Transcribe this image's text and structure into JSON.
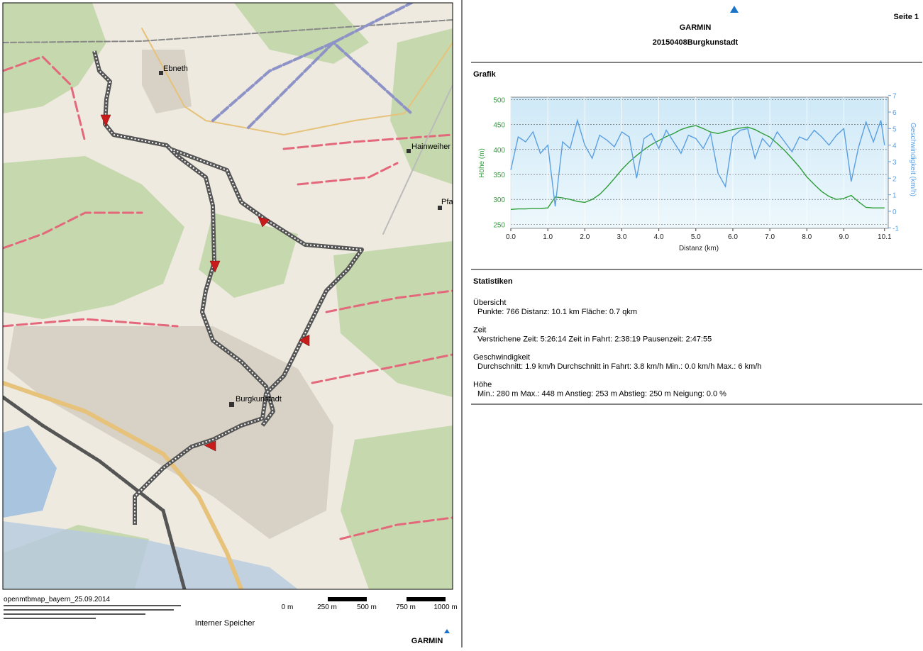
{
  "header": {
    "brand": "GARMIN",
    "title": "20150408Burgkunstadt",
    "page": "Seite 1"
  },
  "map": {
    "labels": [
      "Ebneth",
      "Hainweiher",
      "Pfa",
      "Burgkunstadt"
    ],
    "source": "openmtbmap_bayern_25.09.2014",
    "scale_labels": [
      "0 m",
      "250 m",
      "500 m",
      "750 m",
      "1000 m"
    ],
    "storage": "Interner Speicher",
    "brand": "GARMIN"
  },
  "sections": {
    "graph": "Grafik",
    "stats": "Statistiken"
  },
  "chart_data": {
    "type": "line",
    "ylabel": "Höhe (m)",
    "y2label": "Geschwindigkeit (km/h)",
    "xlabel": "Distanz (km)",
    "x": [
      0,
      0.2,
      0.4,
      0.6,
      0.8,
      1.0,
      1.2,
      1.4,
      1.6,
      1.8,
      2.0,
      2.2,
      2.4,
      2.6,
      2.8,
      3.0,
      3.2,
      3.4,
      3.6,
      3.8,
      4.0,
      4.2,
      4.4,
      4.6,
      4.8,
      5.0,
      5.2,
      5.4,
      5.6,
      5.8,
      6.0,
      6.2,
      6.4,
      6.6,
      6.8,
      7.0,
      7.2,
      7.4,
      7.6,
      7.8,
      8.0,
      8.2,
      8.4,
      8.6,
      8.8,
      9.0,
      9.2,
      9.4,
      9.6,
      9.8,
      10.0,
      10.1
    ],
    "series": [
      {
        "color": "#2f9e3a",
        "values": [
          280,
          281,
          281,
          282,
          282,
          283,
          305,
          303,
          300,
          296,
          294,
          300,
          310,
          325,
          342,
          360,
          375,
          388,
          400,
          410,
          418,
          426,
          432,
          440,
          445,
          448,
          442,
          435,
          432,
          436,
          440,
          443,
          445,
          440,
          432,
          425,
          412,
          398,
          382,
          365,
          345,
          330,
          316,
          306,
          300,
          302,
          308,
          295,
          284,
          283,
          283,
          283
        ]
      },
      {
        "color": "#5b9fe0",
        "axis": "y2",
        "values": [
          2.5,
          4.5,
          4.2,
          4.8,
          3.5,
          4.0,
          0.3,
          4.2,
          3.8,
          5.5,
          4.0,
          3.2,
          4.6,
          4.3,
          3.9,
          4.8,
          4.5,
          2.0,
          4.4,
          4.7,
          3.8,
          4.9,
          4.2,
          3.5,
          4.6,
          4.4,
          3.8,
          4.7,
          2.3,
          1.5,
          4.5,
          4.9,
          5.0,
          3.2,
          4.4,
          3.9,
          4.8,
          4.2,
          3.6,
          4.5,
          4.3,
          4.9,
          4.5,
          4.0,
          4.6,
          5.0,
          1.8,
          3.9,
          5.4,
          4.2,
          5.5,
          4.0
        ]
      }
    ],
    "xlim": [
      0,
      10.2
    ],
    "xticks": [
      {
        "value": 0,
        "label": "0.0"
      },
      {
        "value": 1,
        "label": "1.0"
      },
      {
        "value": 2,
        "label": "2.0"
      },
      {
        "value": 3,
        "label": "3.0"
      },
      {
        "value": 4,
        "label": "4.0"
      },
      {
        "value": 5,
        "label": "5.0"
      },
      {
        "value": 6,
        "label": "6.0"
      },
      {
        "value": 7,
        "label": "7.0"
      },
      {
        "value": 8,
        "label": "8.0"
      },
      {
        "value": 9,
        "label": "9.0"
      },
      10.1
    ],
    "ylim": [
      242,
      505
    ],
    "yticks": [
      250,
      300,
      350,
      400,
      450,
      500
    ],
    "y2lim": [
      -1.03,
      6.9
    ],
    "y2ticks": [
      -1,
      0,
      1,
      2,
      3,
      4,
      5,
      6,
      7
    ],
    "grid": true
  },
  "statistics": [
    {
      "heading": "Übersicht",
      "text": "Punkte: 766  Distanz: 10.1 km  Fläche: 0.7 qkm"
    },
    {
      "heading": "Zeit",
      "text": "Verstrichene Zeit: 5:26:14  Zeit in Fahrt: 2:38:19  Pausenzeit: 2:47:55"
    },
    {
      "heading": "Geschwindigkeit",
      "text": "Durchschnitt: 1.9 km/h  Durchschnitt in Fahrt: 3.8 km/h  Min.: 0.0 km/h  Max.: 6 km/h"
    },
    {
      "heading": "Höhe",
      "text": "Min.: 280 m  Max.: 448 m  Anstieg: 253 m  Abstieg: 250 m  Neigung: 0.0 %"
    }
  ]
}
